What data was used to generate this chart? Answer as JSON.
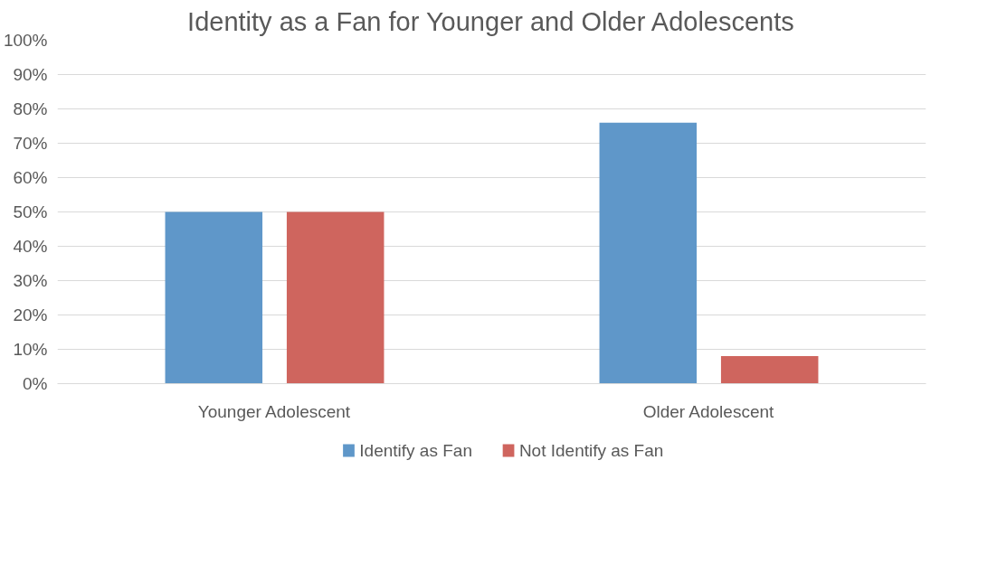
{
  "chart_data": {
    "type": "bar",
    "title": "Identity as a Fan for Younger and Older Adolescents",
    "categories": [
      "Younger Adolescent",
      "Older Adolescent"
    ],
    "series": [
      {
        "name": "Identify as Fan",
        "color": "#5f97c9",
        "values": [
          50,
          76
        ]
      },
      {
        "name": "Not Identify as Fan",
        "color": "#cf655e",
        "values": [
          50,
          8
        ]
      }
    ],
    "ylim": [
      0,
      100
    ],
    "yticks": [
      {
        "value": 0,
        "label": "0%"
      },
      {
        "value": 10,
        "label": "10%"
      },
      {
        "value": 20,
        "label": "20%"
      },
      {
        "value": 30,
        "label": "30%"
      },
      {
        "value": 40,
        "label": "40%"
      },
      {
        "value": 50,
        "label": "50%"
      },
      {
        "value": 60,
        "label": "60%"
      },
      {
        "value": 70,
        "label": "70%"
      },
      {
        "value": 80,
        "label": "80%"
      },
      {
        "value": 90,
        "label": "90%"
      },
      {
        "value": 100,
        "label": "100%"
      }
    ],
    "grid": "y",
    "legend": "bottom"
  }
}
